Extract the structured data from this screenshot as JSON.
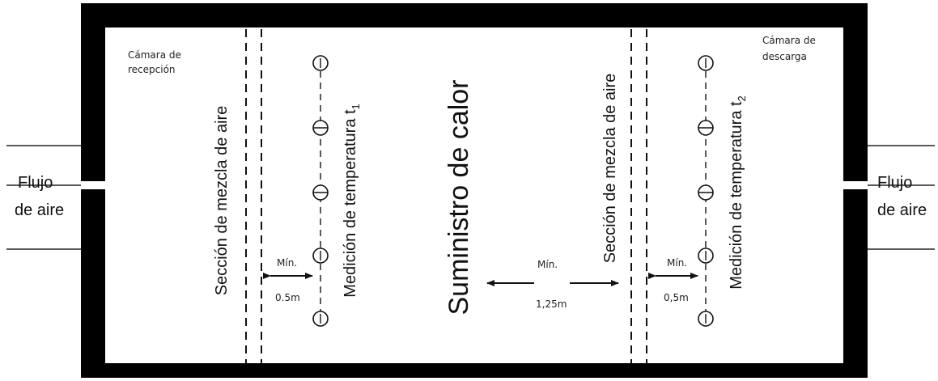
{
  "left_chamber": {
    "line1": "Cámara de",
    "line2": "recepción"
  },
  "right_chamber": {
    "line1": "Cámara de",
    "line2": "descarga"
  },
  "left_flow": {
    "line1": "Flujo",
    "line2": "de aire"
  },
  "right_flow": {
    "line1": "Flujo",
    "line2": "de aire"
  },
  "left_mixing": "Sección de mezcla de aire",
  "right_mixing": "Sección de mezcla de aire",
  "left_measure": {
    "text": "Medición de temperatura t",
    "subscript": "1"
  },
  "right_measure": {
    "text": "Medición de temperatura t",
    "subscript": "2"
  },
  "heat_supply": "Suministro de calor",
  "dim_left": {
    "label": "Mín.",
    "value": "0.5m"
  },
  "dim_center": {
    "label": "Mín.",
    "value": "1,25m"
  },
  "dim_right": {
    "label": "Mín.",
    "value": "0,5m"
  },
  "sensor_symbol": "(-)"
}
